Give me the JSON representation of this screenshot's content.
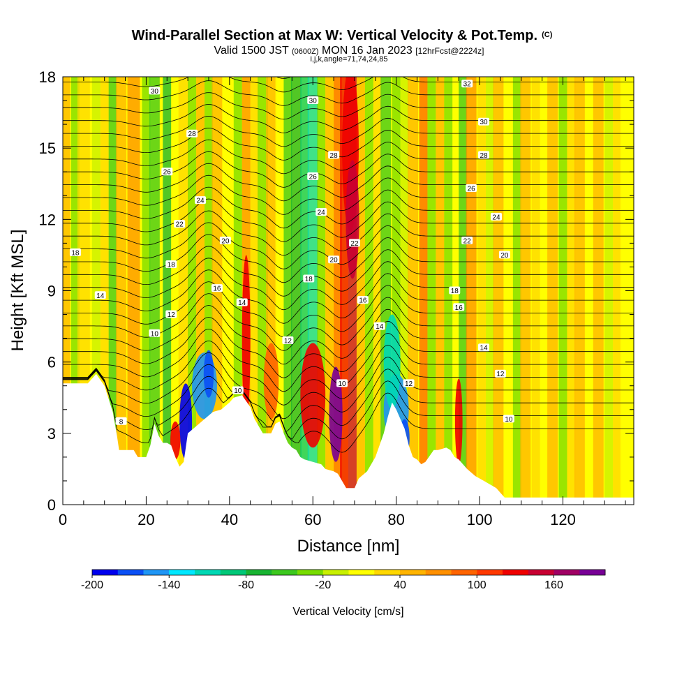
{
  "chart_data": {
    "type": "heatmap",
    "title": "Wind-Parallel Section at Max W: Vertical Velocity & Pot.Temp.",
    "title_units": "(C)",
    "subtitle_prefix": "Valid 1500 JST",
    "subtitle_utc": "(0600Z)",
    "subtitle_date": "MON 16 Jan 2023",
    "subtitle_fcst": "[12hrFcst@2224z]",
    "subtitle_2": "i,j,k,angle=71,74,24,85",
    "xlabel": "Distance [nm]",
    "ylabel": "Height [Kft MSL]",
    "xlim": [
      0,
      137
    ],
    "ylim": [
      0,
      18
    ],
    "x_ticks": [
      "0",
      "20",
      "40",
      "60",
      "80",
      "100",
      "120"
    ],
    "y_ticks": [
      "0",
      "3",
      "6",
      "9",
      "12",
      "15",
      "18"
    ],
    "colorbar": {
      "label": "Vertical Velocity [cm/s]",
      "min": -200,
      "max": 200,
      "step": 20,
      "tick_labels": [
        "-200",
        "-140",
        "-80",
        "-20",
        "40",
        "100",
        "160"
      ],
      "colors": [
        "#0000ee",
        "#0a4ff5",
        "#1f96f5",
        "#00e8ff",
        "#00d8b4",
        "#00c878",
        "#18b432",
        "#3cc81e",
        "#78dc00",
        "#c8f000",
        "#ffff00",
        "#ffd800",
        "#ffb400",
        "#ff9000",
        "#ff6400",
        "#ff3800",
        "#f00000",
        "#c80032",
        "#a00064",
        "#780096"
      ]
    },
    "terrain_kft": [
      [
        0,
        5.1
      ],
      [
        6,
        5.1
      ],
      [
        8,
        5.5
      ],
      [
        10,
        5.0
      ],
      [
        12,
        3.9
      ],
      [
        13,
        2.9
      ],
      [
        13.5,
        2.3
      ],
      [
        17,
        2.3
      ],
      [
        18,
        2.0
      ],
      [
        20,
        2.0
      ],
      [
        21,
        2.5
      ],
      [
        22,
        3.4
      ],
      [
        23,
        2.9
      ],
      [
        24,
        2.6
      ],
      [
        25,
        2.6
      ],
      [
        26,
        2.5
      ],
      [
        27,
        2.0
      ],
      [
        28,
        1.6
      ],
      [
        29,
        1.8
      ],
      [
        30,
        3.0
      ],
      [
        32,
        3.3
      ],
      [
        34,
        3.6
      ],
      [
        36,
        3.9
      ],
      [
        38,
        4.0
      ],
      [
        40,
        4.3
      ],
      [
        41,
        4.5
      ],
      [
        43,
        4.6
      ],
      [
        45,
        4.1
      ],
      [
        46,
        3.6
      ],
      [
        48,
        3.0
      ],
      [
        50,
        3.0
      ],
      [
        51,
        3.4
      ],
      [
        52,
        3.5
      ],
      [
        53,
        3.0
      ],
      [
        54,
        2.6
      ],
      [
        55,
        2.4
      ],
      [
        56,
        2.3
      ],
      [
        57,
        2.0
      ],
      [
        58,
        1.9
      ],
      [
        60,
        1.8
      ],
      [
        62,
        1.7
      ],
      [
        63,
        1.5
      ],
      [
        65,
        1.4
      ],
      [
        66,
        1.3
      ],
      [
        67,
        1.0
      ],
      [
        68,
        0.7
      ],
      [
        70,
        0.7
      ],
      [
        71,
        1.1
      ],
      [
        73,
        1.4
      ],
      [
        75,
        2.0
      ],
      [
        77,
        3.0
      ],
      [
        78,
        3.7
      ],
      [
        79,
        4.3
      ],
      [
        80,
        4.0
      ],
      [
        82,
        3.2
      ],
      [
        83,
        2.5
      ],
      [
        84,
        2.0
      ],
      [
        85,
        1.9
      ],
      [
        86,
        1.7
      ],
      [
        87,
        1.8
      ],
      [
        89,
        2.3
      ],
      [
        90,
        2.3
      ],
      [
        92,
        2.4
      ],
      [
        93,
        2.3
      ],
      [
        94,
        2.0
      ],
      [
        95,
        1.9
      ],
      [
        97,
        1.5
      ],
      [
        99,
        1.2
      ],
      [
        101,
        1.0
      ],
      [
        103,
        0.8
      ],
      [
        104,
        0.7
      ],
      [
        105,
        0.5
      ],
      [
        106,
        0.3
      ],
      [
        107,
        0.3
      ],
      [
        137,
        0.3
      ]
    ],
    "theta_contour_levels": [
      4,
      5,
      6,
      7,
      8,
      9,
      10,
      11,
      12,
      13,
      14,
      15,
      16,
      17,
      18,
      19,
      20,
      21,
      22,
      23,
      24,
      25,
      26,
      27,
      28,
      29,
      30,
      31,
      32,
      33
    ],
    "contour_labels": [
      {
        "text": "30",
        "x": 22,
        "y": 17.4
      },
      {
        "text": "28",
        "x": 31,
        "y": 15.6
      },
      {
        "text": "26",
        "x": 25,
        "y": 14.0
      },
      {
        "text": "24",
        "x": 33,
        "y": 12.8
      },
      {
        "text": "22",
        "x": 28,
        "y": 11.8
      },
      {
        "text": "20",
        "x": 39,
        "y": 11.1
      },
      {
        "text": "18",
        "x": 3,
        "y": 10.6
      },
      {
        "text": "18",
        "x": 26,
        "y": 10.1
      },
      {
        "text": "16",
        "x": 37,
        "y": 9.1
      },
      {
        "text": "14",
        "x": 9,
        "y": 8.8
      },
      {
        "text": "14",
        "x": 43,
        "y": 8.5
      },
      {
        "text": "12",
        "x": 26,
        "y": 8.0
      },
      {
        "text": "10",
        "x": 22,
        "y": 7.2
      },
      {
        "text": "10",
        "x": 42,
        "y": 4.8
      },
      {
        "text": "8",
        "x": 14,
        "y": 3.5
      },
      {
        "text": "30",
        "x": 60,
        "y": 17.0
      },
      {
        "text": "28",
        "x": 65,
        "y": 14.7
      },
      {
        "text": "26",
        "x": 60,
        "y": 13.8
      },
      {
        "text": "24",
        "x": 62,
        "y": 12.3
      },
      {
        "text": "22",
        "x": 70,
        "y": 11.0
      },
      {
        "text": "20",
        "x": 65,
        "y": 10.3
      },
      {
        "text": "18",
        "x": 59,
        "y": 9.5
      },
      {
        "text": "16",
        "x": 72,
        "y": 8.6
      },
      {
        "text": "14",
        "x": 76,
        "y": 7.5
      },
      {
        "text": "12",
        "x": 54,
        "y": 6.9
      },
      {
        "text": "10",
        "x": 67,
        "y": 5.1
      },
      {
        "text": "12",
        "x": 83,
        "y": 5.1
      },
      {
        "text": "32",
        "x": 97,
        "y": 17.7
      },
      {
        "text": "30",
        "x": 101,
        "y": 16.1
      },
      {
        "text": "28",
        "x": 101,
        "y": 14.7
      },
      {
        "text": "26",
        "x": 98,
        "y": 13.3
      },
      {
        "text": "24",
        "x": 104,
        "y": 12.1
      },
      {
        "text": "22",
        "x": 97,
        "y": 11.1
      },
      {
        "text": "20",
        "x": 106,
        "y": 10.5
      },
      {
        "text": "18",
        "x": 94,
        "y": 9.0
      },
      {
        "text": "16",
        "x": 95,
        "y": 8.3
      },
      {
        "text": "14",
        "x": 101,
        "y": 6.6
      },
      {
        "text": "12",
        "x": 105,
        "y": 5.5
      },
      {
        "text": "10",
        "x": 107,
        "y": 3.6
      }
    ]
  }
}
